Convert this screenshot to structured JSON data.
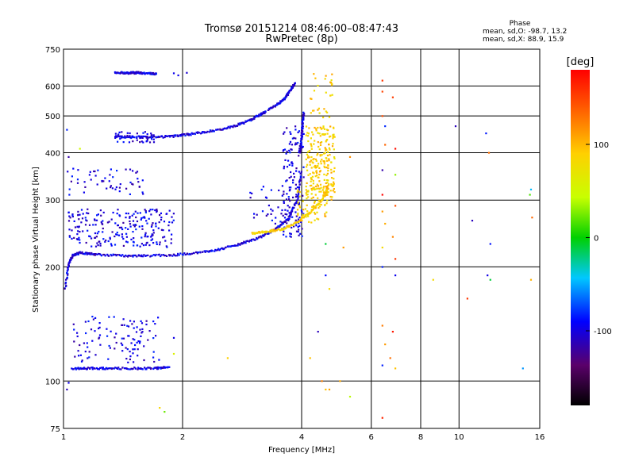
{
  "chart_data": {
    "type": "scatter",
    "title": "Tromsø 20151214 08:46:00–08:47:43",
    "subtitle": "RwPretec (8p)",
    "xlabel": "Frequency [MHz]",
    "ylabel": "Stationary phase Virtual Height [km]",
    "x_scale": "log",
    "y_scale": "log",
    "xlim": [
      1,
      16
    ],
    "ylim": [
      75,
      750
    ],
    "x_ticks": [
      1,
      2,
      4,
      6,
      8,
      10,
      16
    ],
    "x_tick_labels": [
      "1",
      "2",
      "4",
      "6",
      "8",
      "10",
      "16"
    ],
    "y_ticks": [
      75,
      100,
      200,
      300,
      400,
      500,
      600,
      750
    ],
    "y_tick_labels": [
      "75",
      "100",
      "200",
      "300",
      "400",
      "500",
      "600",
      "750"
    ],
    "grid": true,
    "phase_info": {
      "heading": "Phase",
      "o_line": "mean, sd,O: -98.7, 13.2",
      "x_line": "mean, sd,X:  88.9, 15.9"
    },
    "colorbar": {
      "label": "[deg]",
      "range": [
        -180,
        180
      ],
      "ticks": [
        100,
        0,
        -100
      ],
      "tick_labels": [
        "100",
        "0",
        "-100"
      ]
    },
    "series": [
      {
        "mode": "O",
        "phase": -100,
        "traces": [
          {
            "f": [
              1.01,
              1.03,
              1.06,
              1.1,
              1.2,
              1.4,
              1.6,
              1.9,
              2.2,
              2.5,
              2.8,
              3.1,
              3.4,
              3.7,
              3.9,
              4.0
            ],
            "h": [
              175,
              205,
              215,
              218,
              216,
              214,
              214,
              215,
              218,
              223,
              230,
              238,
              250,
              268,
              300,
              360
            ]
          },
          {
            "f": [
              1.35,
              1.5,
              1.7,
              1.9,
              2.1,
              2.4,
              2.7,
              2.95,
              3.1,
              3.25
            ],
            "h": [
              440,
              440,
              440,
              442,
              448,
              458,
              470,
              486,
              500,
              515
            ]
          },
          {
            "f": [
              3.3,
              3.5,
              3.65,
              3.75,
              3.85
            ],
            "h": [
              520,
              540,
              560,
              585,
              610
            ]
          },
          {
            "f": [
              3.95,
              4.0,
              4.02,
              4.05
            ],
            "h": [
              400,
              440,
              480,
              510
            ]
          },
          {
            "f": [
              1.05,
              1.15,
              1.3,
              1.5,
              1.7,
              1.85
            ],
            "h": [
              108,
              108,
              108,
              108,
              108,
              109
            ]
          },
          {
            "f": [
              1.35,
              1.45,
              1.55,
              1.65,
              1.72
            ],
            "h": [
              650,
              650,
              650,
              648,
              645
            ]
          }
        ],
        "clusters": [
          {
            "f_range": [
              1.02,
              1.9
            ],
            "h_range": [
              225,
              285
            ],
            "n": 230
          },
          {
            "f_range": [
              1.02,
              1.6
            ],
            "h_range": [
              310,
              365
            ],
            "n": 55
          },
          {
            "f_range": [
              1.05,
              1.75
            ],
            "h_range": [
              112,
              148
            ],
            "n": 110
          },
          {
            "f_range": [
              3.55,
              4.05
            ],
            "h_range": [
              240,
              470
            ],
            "n": 140
          },
          {
            "f_range": [
              2.9,
              3.7
            ],
            "h_range": [
              260,
              330
            ],
            "n": 30
          },
          {
            "f_range": [
              1.35,
              1.7
            ],
            "h_range": [
              425,
              455
            ],
            "n": 40
          }
        ]
      },
      {
        "mode": "X",
        "phase": 90,
        "traces": [
          {
            "f": [
              3.0,
              3.3,
              3.6,
              3.9,
              4.2,
              4.5,
              4.7
            ],
            "h": [
              245,
              248,
              252,
              262,
              278,
              300,
              330
            ]
          }
        ],
        "clusters": [
          {
            "f_range": [
              4.1,
              4.85
            ],
            "h_range": [
              300,
              470
            ],
            "n": 230
          },
          {
            "f_range": [
              4.2,
              4.8
            ],
            "h_range": [
              480,
              650
            ],
            "n": 30
          },
          {
            "f_range": [
              3.9,
              4.7
            ],
            "h_range": [
              260,
              320
            ],
            "n": 60
          }
        ]
      }
    ],
    "scattered_points": [
      {
        "f": 6.4,
        "h": 620,
        "phase": 140
      },
      {
        "f": 6.4,
        "h": 580,
        "phase": 150
      },
      {
        "f": 6.8,
        "h": 560,
        "phase": 160
      },
      {
        "f": 6.4,
        "h": 500,
        "phase": 130
      },
      {
        "f": 6.5,
        "h": 470,
        "phase": -90
      },
      {
        "f": 6.5,
        "h": 420,
        "phase": 150
      },
      {
        "f": 6.9,
        "h": 410,
        "phase": 160
      },
      {
        "f": 6.4,
        "h": 360,
        "phase": -100
      },
      {
        "f": 6.9,
        "h": 350,
        "phase": 40
      },
      {
        "f": 6.4,
        "h": 310,
        "phase": 160
      },
      {
        "f": 6.9,
        "h": 290,
        "phase": 140
      },
      {
        "f": 6.4,
        "h": 280,
        "phase": 100
      },
      {
        "f": 6.5,
        "h": 260,
        "phase": 110
      },
      {
        "f": 6.8,
        "h": 240,
        "phase": 120
      },
      {
        "f": 6.4,
        "h": 225,
        "phase": 90
      },
      {
        "f": 6.9,
        "h": 210,
        "phase": 150
      },
      {
        "f": 6.4,
        "h": 200,
        "phase": -100
      },
      {
        "f": 6.9,
        "h": 190,
        "phase": -100
      },
      {
        "f": 6.4,
        "h": 140,
        "phase": 130
      },
      {
        "f": 6.8,
        "h": 135,
        "phase": 150
      },
      {
        "f": 6.5,
        "h": 125,
        "phase": 110
      },
      {
        "f": 6.7,
        "h": 115,
        "phase": 140
      },
      {
        "f": 6.4,
        "h": 110,
        "phase": -100
      },
      {
        "f": 6.9,
        "h": 108,
        "phase": 100
      },
      {
        "f": 6.4,
        "h": 80,
        "phase": 150
      },
      {
        "f": 4.7,
        "h": 95,
        "phase": 100
      },
      {
        "f": 5.3,
        "h": 91,
        "phase": 30
      },
      {
        "f": 4.6,
        "h": 95,
        "phase": 110
      },
      {
        "f": 4.2,
        "h": 115,
        "phase": 100
      },
      {
        "f": 4.5,
        "h": 100,
        "phase": 120
      },
      {
        "f": 5.0,
        "h": 100,
        "phase": 90
      },
      {
        "f": 4.4,
        "h": 135,
        "phase": -100
      },
      {
        "f": 4.6,
        "h": 190,
        "phase": -90
      },
      {
        "f": 4.7,
        "h": 175,
        "phase": 100
      },
      {
        "f": 4.6,
        "h": 230,
        "phase": -20
      },
      {
        "f": 5.1,
        "h": 225,
        "phase": 110
      },
      {
        "f": 5.3,
        "h": 390,
        "phase": 120
      },
      {
        "f": 8.6,
        "h": 185,
        "phase": 100
      },
      {
        "f": 9.8,
        "h": 470,
        "phase": -110
      },
      {
        "f": 10.5,
        "h": 165,
        "phase": 160
      },
      {
        "f": 10.8,
        "h": 265,
        "phase": -110
      },
      {
        "f": 11.7,
        "h": 450,
        "phase": -100
      },
      {
        "f": 11.9,
        "h": 400,
        "phase": 150
      },
      {
        "f": 12.0,
        "h": 230,
        "phase": -100
      },
      {
        "f": 11.8,
        "h": 190,
        "phase": -90
      },
      {
        "f": 12.0,
        "h": 185,
        "phase": -20
      },
      {
        "f": 14.5,
        "h": 108,
        "phase": -60
      },
      {
        "f": 15.2,
        "h": 320,
        "phase": -40
      },
      {
        "f": 15.1,
        "h": 310,
        "phase": 20
      },
      {
        "f": 15.3,
        "h": 270,
        "phase": 130
      },
      {
        "f": 15.2,
        "h": 185,
        "phase": 110
      },
      {
        "f": 2.6,
        "h": 115,
        "phase": 90
      },
      {
        "f": 1.75,
        "h": 85,
        "phase": 100
      },
      {
        "f": 1.8,
        "h": 83,
        "phase": 30
      },
      {
        "f": 1.9,
        "h": 118,
        "phase": 60
      },
      {
        "f": 1.9,
        "h": 130,
        "phase": -100
      },
      {
        "f": 1.95,
        "h": 640,
        "phase": -100
      },
      {
        "f": 2.05,
        "h": 650,
        "phase": -100
      },
      {
        "f": 1.9,
        "h": 648,
        "phase": -100
      },
      {
        "f": 1.02,
        "h": 460,
        "phase": -100
      },
      {
        "f": 1.03,
        "h": 390,
        "phase": -100
      },
      {
        "f": 1.02,
        "h": 95,
        "phase": -100
      },
      {
        "f": 1.03,
        "h": 99,
        "phase": -100
      },
      {
        "f": 1.1,
        "h": 410,
        "phase": 40
      }
    ]
  }
}
